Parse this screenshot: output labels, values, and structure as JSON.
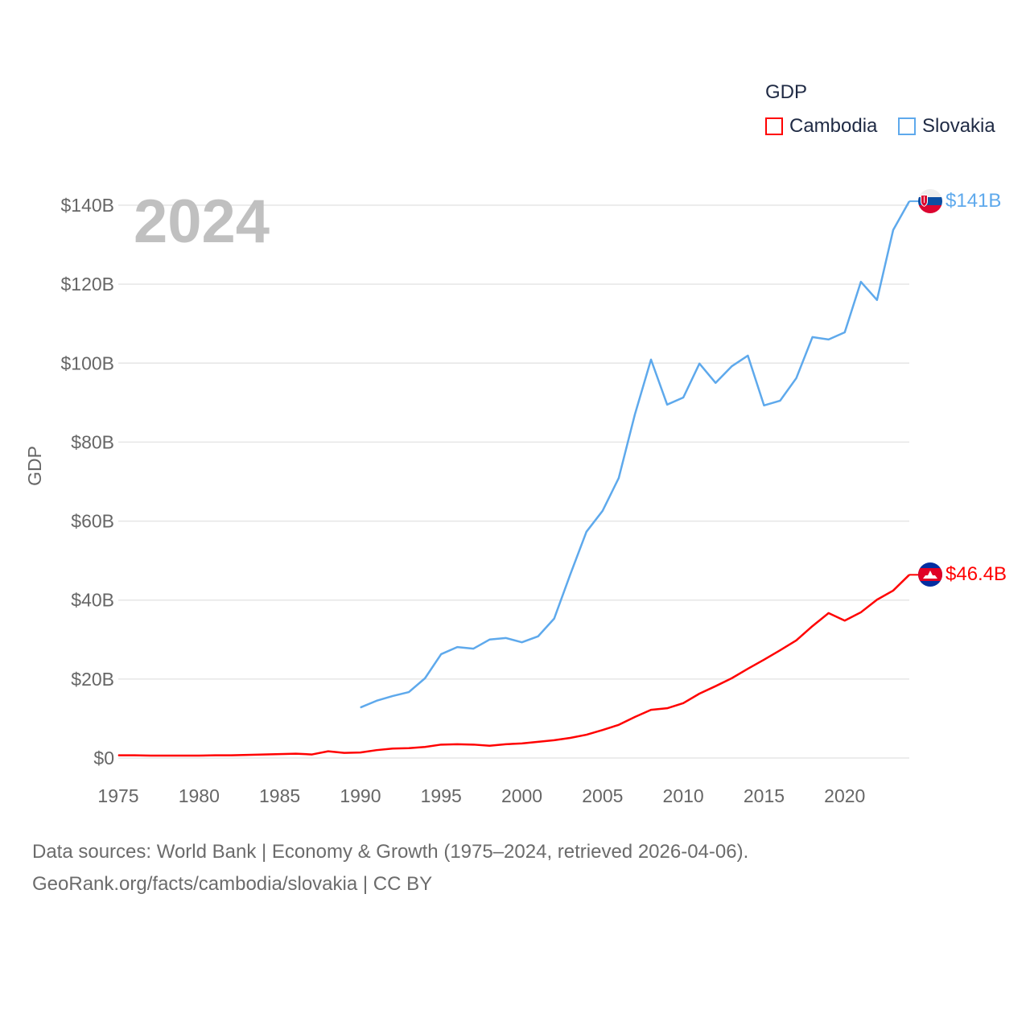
{
  "chart_data": {
    "type": "line",
    "title": "",
    "year_label": "2024",
    "ylabel": "GDP",
    "xlabel": "",
    "xlim": [
      1975,
      2024
    ],
    "ylim": [
      0,
      140
    ],
    "grid": true,
    "x_ticks": [
      1975,
      1980,
      1985,
      1990,
      1995,
      2000,
      2005,
      2010,
      2015,
      2020
    ],
    "y_ticks": [
      0,
      20,
      40,
      60,
      80,
      100,
      120,
      140
    ],
    "y_tick_labels": [
      "$0",
      "$20B",
      "$40B",
      "$60B",
      "$80B",
      "$100B",
      "$120B",
      "$140B"
    ],
    "legend": {
      "title": "GDP",
      "placement": "top-right"
    },
    "series": [
      {
        "name": "Cambodia",
        "color": "#ff0000",
        "end_label": "$46.4B",
        "flag": "cambodia-flag",
        "x": [
          1975,
          1976,
          1977,
          1978,
          1979,
          1980,
          1981,
          1982,
          1983,
          1984,
          1985,
          1986,
          1987,
          1988,
          1989,
          1990,
          1991,
          1992,
          1993,
          1994,
          1995,
          1996,
          1997,
          1998,
          1999,
          2000,
          2001,
          2002,
          2003,
          2004,
          2005,
          2006,
          2007,
          2008,
          2009,
          2010,
          2011,
          2012,
          2013,
          2014,
          2015,
          2016,
          2017,
          2018,
          2019,
          2020,
          2021,
          2022,
          2023,
          2024
        ],
        "values": [
          0.7,
          0.7,
          0.6,
          0.6,
          0.6,
          0.6,
          0.7,
          0.7,
          0.8,
          0.9,
          1.0,
          1.1,
          0.9,
          1.7,
          1.3,
          1.4,
          2.0,
          2.4,
          2.5,
          2.8,
          3.4,
          3.5,
          3.4,
          3.1,
          3.5,
          3.7,
          4.1,
          4.5,
          5.1,
          5.9,
          7.1,
          8.4,
          10.4,
          12.2,
          12.6,
          13.9,
          16.3,
          18.2,
          20.2,
          22.6,
          24.9,
          27.3,
          29.8,
          33.4,
          36.7,
          34.8,
          36.9,
          40.1,
          42.4,
          46.4
        ]
      },
      {
        "name": "Slovakia",
        "color": "#5ea9ec",
        "end_label": "$141B",
        "flag": "slovakia-flag",
        "x": [
          1990,
          1991,
          1992,
          1993,
          1994,
          1995,
          1996,
          1997,
          1998,
          1999,
          2000,
          2001,
          2002,
          2003,
          2004,
          2005,
          2006,
          2007,
          2008,
          2009,
          2010,
          2011,
          2012,
          2013,
          2014,
          2015,
          2016,
          2017,
          2018,
          2019,
          2020,
          2021,
          2022,
          2023,
          2024
        ],
        "values": [
          12.8,
          14.5,
          15.7,
          16.7,
          20.2,
          26.3,
          28.1,
          27.7,
          30.0,
          30.4,
          29.3,
          30.8,
          35.3,
          46.5,
          57.3,
          62.6,
          70.9,
          87.0,
          100.9,
          89.5,
          91.3,
          99.9,
          95.0,
          99.2,
          101.9,
          89.3,
          90.5,
          96.2,
          106.6,
          106.0,
          107.8,
          120.6,
          116.0,
          133.7,
          141.0
        ]
      }
    ]
  },
  "footer": {
    "line1": "Data sources: World Bank | Economy & Growth (1975–2024, retrieved 2026-04-06).",
    "line2": "GeoRank.org/facts/cambodia/slovakia | CC BY"
  }
}
